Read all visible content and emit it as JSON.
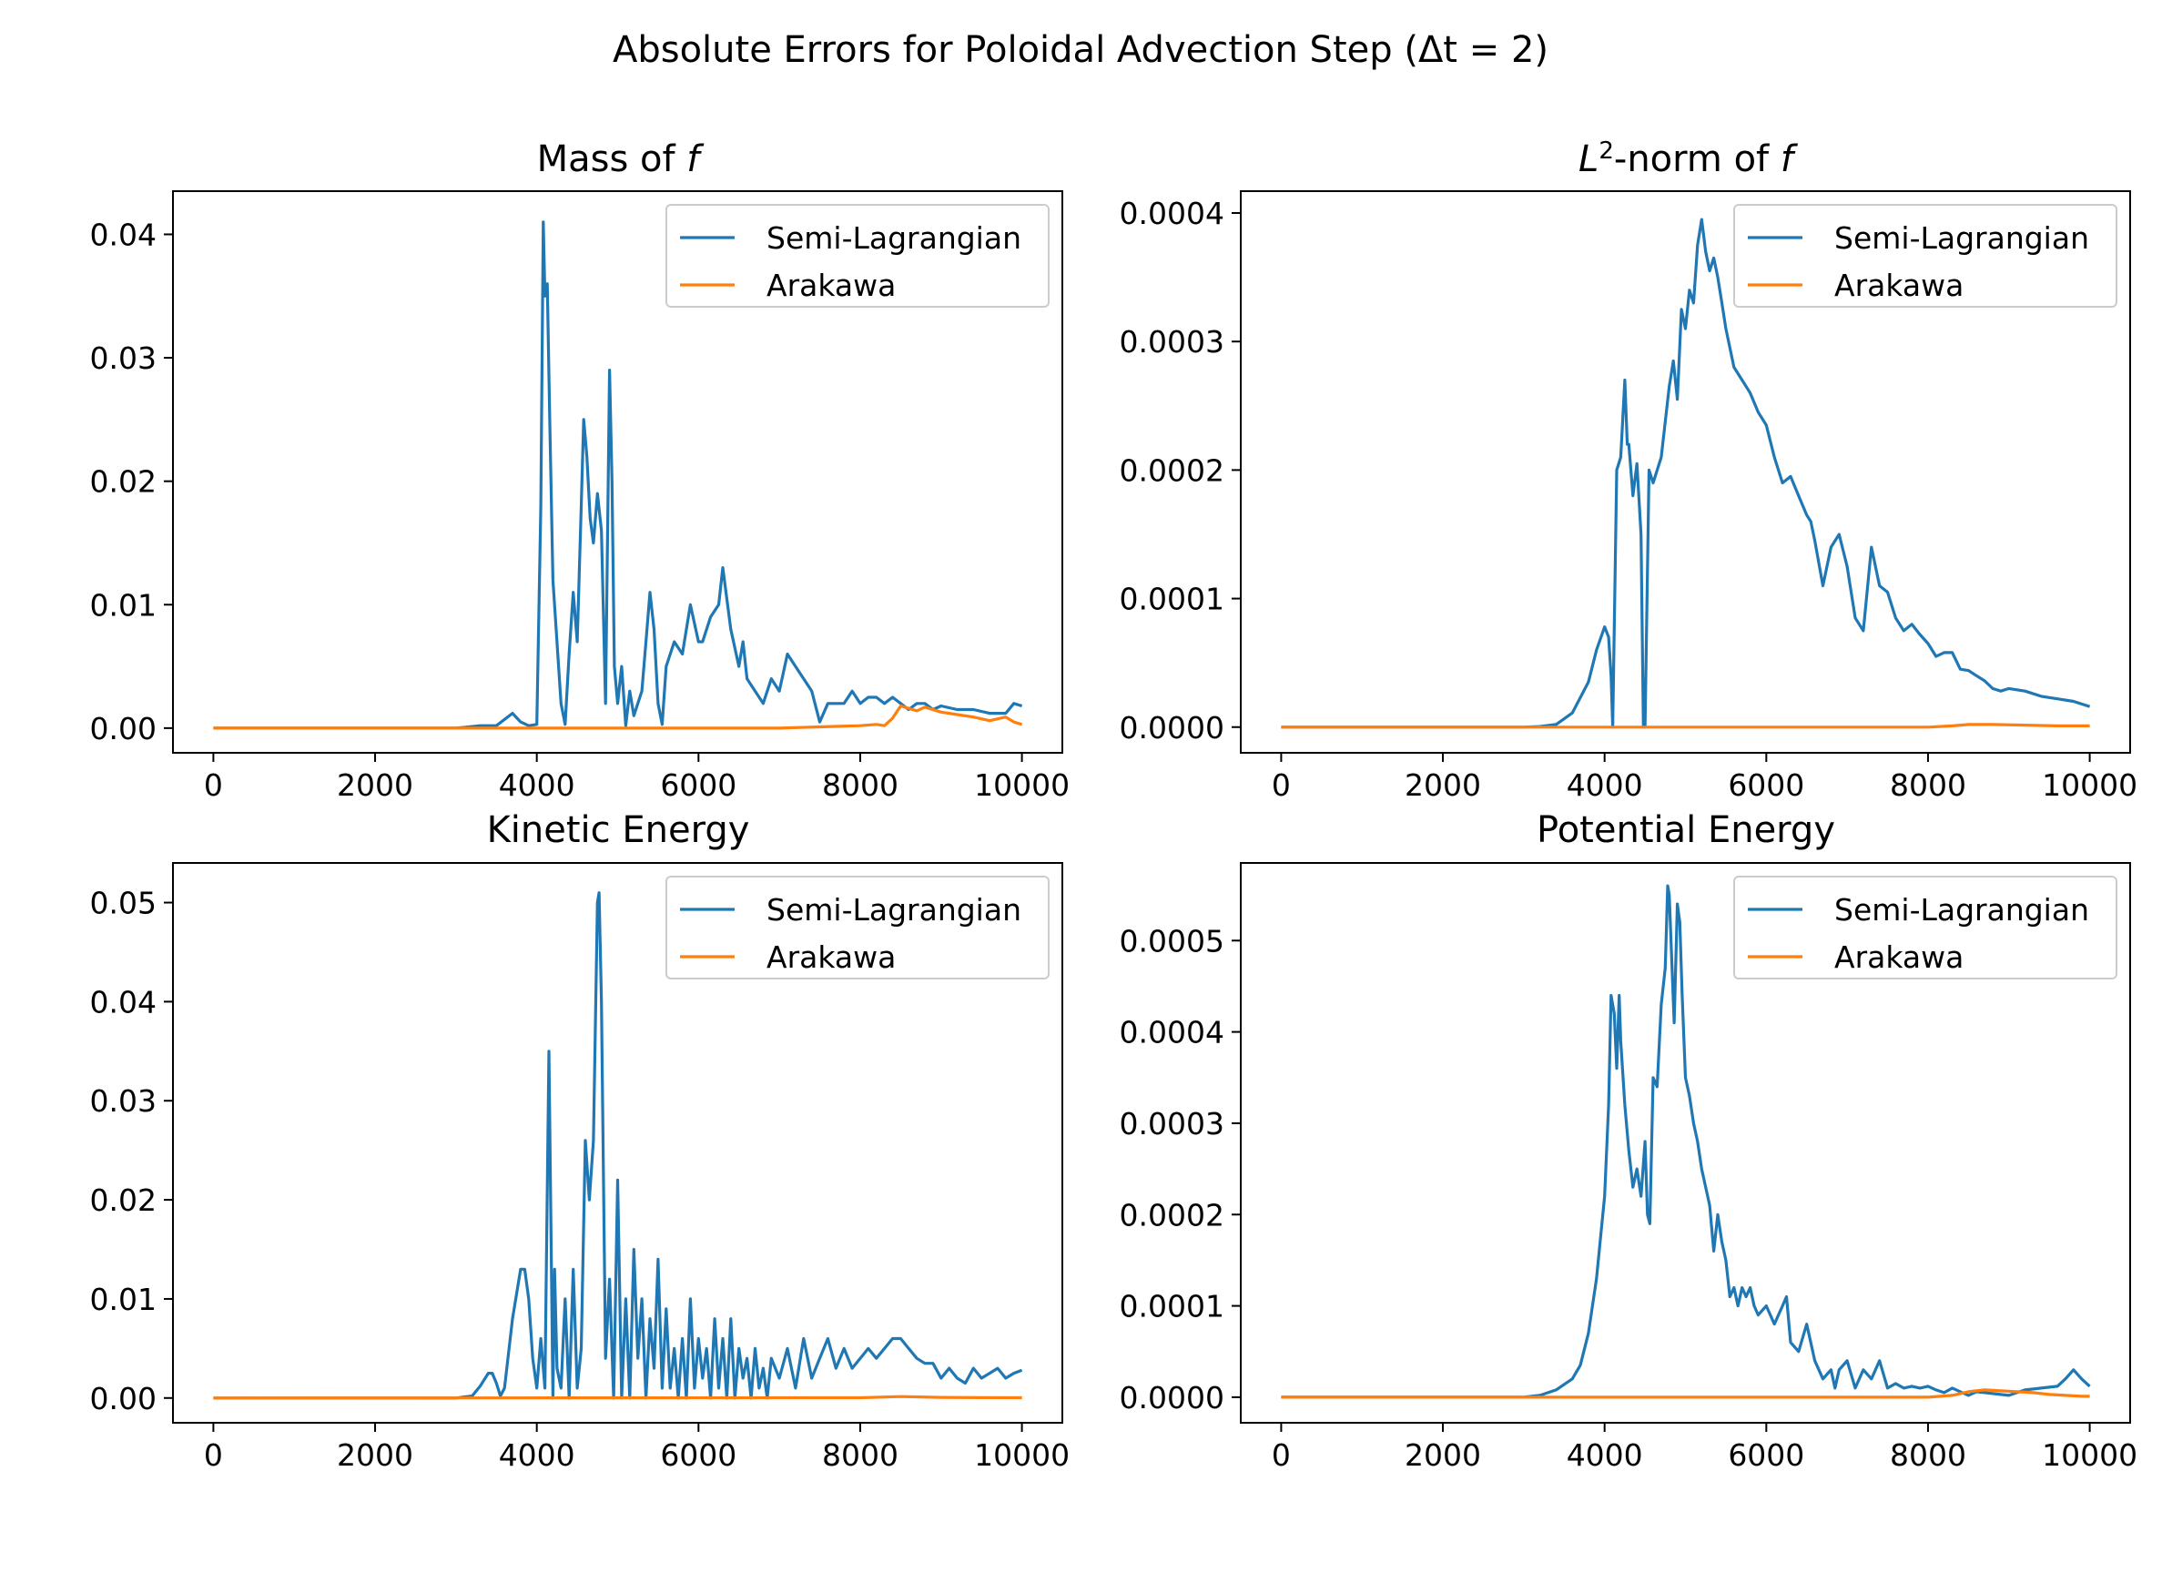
{
  "figure": {
    "suptitle": "Absolute Errors for Poloidal Advection Step (Δt = 2)"
  },
  "colors": {
    "semi_lagrangian": "#1f77b4",
    "arakawa": "#ff7f0e",
    "axes": "#000000",
    "legend_border": "#cccccc"
  },
  "chart_data": [
    {
      "type": "line",
      "title": "Mass of f",
      "legend": "top-right",
      "grid": false,
      "xlim": [
        -500,
        10500
      ],
      "ylim": [
        -0.002,
        0.0435
      ],
      "xticks": [
        0,
        2000,
        4000,
        6000,
        8000,
        10000
      ],
      "xtick_labels": [
        "0",
        "2000",
        "4000",
        "6000",
        "8000",
        "10000"
      ],
      "yticks": [
        0,
        0.01,
        0.02,
        0.03,
        0.04
      ],
      "ytick_labels": [
        "0.00",
        "0.01",
        "0.02",
        "0.03",
        "0.04"
      ],
      "series": [
        {
          "name": "Semi-Lagrangian",
          "color": "#1f77b4",
          "x": [
            0,
            3000,
            3300,
            3500,
            3700,
            3800,
            3900,
            4000,
            4050,
            4080,
            4100,
            4130,
            4160,
            4200,
            4300,
            4350,
            4400,
            4450,
            4500,
            4550,
            4580,
            4620,
            4660,
            4700,
            4750,
            4800,
            4850,
            4900,
            4930,
            4960,
            5000,
            5050,
            5100,
            5150,
            5200,
            5300,
            5350,
            5400,
            5450,
            5500,
            5550,
            5600,
            5700,
            5800,
            5900,
            6000,
            6050,
            6100,
            6150,
            6250,
            6300,
            6400,
            6500,
            6550,
            6600,
            6700,
            6800,
            6900,
            7000,
            7100,
            7200,
            7300,
            7400,
            7500,
            7600,
            7700,
            7800,
            7900,
            8000,
            8100,
            8200,
            8300,
            8400,
            8500,
            8600,
            8700,
            8800,
            8900,
            9000,
            9200,
            9400,
            9600,
            9800,
            9900,
            10000
          ],
          "y": [
            0.0,
            0.0,
            0.0002,
            0.0002,
            0.0012,
            0.0005,
            0.0002,
            0.0003,
            0.018,
            0.041,
            0.035,
            0.036,
            0.025,
            0.012,
            0.002,
            0.0003,
            0.006,
            0.011,
            0.007,
            0.018,
            0.025,
            0.022,
            0.017,
            0.015,
            0.019,
            0.016,
            0.002,
            0.029,
            0.02,
            0.005,
            0.002,
            0.005,
            0.0002,
            0.003,
            0.001,
            0.003,
            0.007,
            0.011,
            0.008,
            0.002,
            0.0003,
            0.005,
            0.007,
            0.006,
            0.01,
            0.007,
            0.007,
            0.008,
            0.009,
            0.01,
            0.013,
            0.008,
            0.005,
            0.007,
            0.004,
            0.003,
            0.002,
            0.004,
            0.003,
            0.006,
            0.005,
            0.004,
            0.003,
            0.0005,
            0.002,
            0.002,
            0.002,
            0.003,
            0.002,
            0.0025,
            0.0025,
            0.002,
            0.0025,
            0.002,
            0.0015,
            0.002,
            0.002,
            0.0015,
            0.0018,
            0.0015,
            0.0015,
            0.0012,
            0.0012,
            0.002,
            0.0018
          ]
        },
        {
          "name": "Arakawa",
          "color": "#ff7f0e",
          "x": [
            0,
            7000,
            7500,
            8000,
            8200,
            8300,
            8400,
            8500,
            8600,
            8700,
            8800,
            9000,
            9200,
            9400,
            9600,
            9800,
            9900,
            10000
          ],
          "y": [
            0.0,
            0.0,
            0.0001,
            0.0002,
            0.0003,
            0.0002,
            0.0008,
            0.0018,
            0.0016,
            0.0014,
            0.0017,
            0.0013,
            0.0011,
            0.0009,
            0.0006,
            0.0009,
            0.0005,
            0.0003
          ]
        }
      ]
    },
    {
      "type": "line",
      "title": "L²-norm of f",
      "legend": "top-right",
      "grid": false,
      "xlim": [
        -500,
        10500
      ],
      "ylim": [
        -2e-05,
        0.000417
      ],
      "xticks": [
        0,
        2000,
        4000,
        6000,
        8000,
        10000
      ],
      "xtick_labels": [
        "0",
        "2000",
        "4000",
        "6000",
        "8000",
        "10000"
      ],
      "yticks": [
        0,
        0.0001,
        0.0002,
        0.0003,
        0.0004
      ],
      "ytick_labels": [
        "0.0000",
        "0.0001",
        "0.0002",
        "0.0003",
        "0.0004"
      ],
      "series": [
        {
          "name": "Semi-Lagrangian",
          "color": "#1f77b4",
          "x": [
            0,
            3000,
            3200,
            3400,
            3600,
            3800,
            3900,
            4000,
            4050,
            4080,
            4100,
            4150,
            4200,
            4250,
            4280,
            4300,
            4350,
            4400,
            4450,
            4480,
            4500,
            4550,
            4600,
            4700,
            4800,
            4850,
            4900,
            4950,
            5000,
            5050,
            5100,
            5150,
            5200,
            5250,
            5300,
            5350,
            5400,
            5450,
            5500,
            5600,
            5700,
            5800,
            5900,
            6000,
            6100,
            6200,
            6300,
            6400,
            6500,
            6550,
            6600,
            6700,
            6800,
            6900,
            7000,
            7100,
            7200,
            7300,
            7400,
            7500,
            7600,
            7700,
            7800,
            7900,
            8000,
            8100,
            8200,
            8300,
            8400,
            8500,
            8600,
            8700,
            8800,
            8900,
            9000,
            9200,
            9400,
            9600,
            9800,
            10000
          ],
          "y": [
            0.0,
            0.0,
            5e-07,
            2e-06,
            1.1e-05,
            3.5e-05,
            6e-05,
            7.8e-05,
            7e-05,
            4e-05,
            0.0,
            0.0002,
            0.00021,
            0.00027,
            0.00022,
            0.00022,
            0.00018,
            0.000205,
            0.00015,
            0.0,
            0.0,
            0.0002,
            0.00019,
            0.00021,
            0.000265,
            0.000285,
            0.000255,
            0.000325,
            0.00031,
            0.00034,
            0.00033,
            0.000375,
            0.000395,
            0.00037,
            0.000355,
            0.000365,
            0.00035,
            0.00033,
            0.00031,
            0.00028,
            0.00027,
            0.00026,
            0.000245,
            0.000235,
            0.00021,
            0.00019,
            0.000195,
            0.00018,
            0.000165,
            0.00016,
            0.000145,
            0.00011,
            0.00014,
            0.00015,
            0.000125,
            8.5e-05,
            7.5e-05,
            0.00014,
            0.00011,
            0.000105,
            8.5e-05,
            7.5e-05,
            8e-05,
            7.2e-05,
            6.5e-05,
            5.5e-05,
            5.8e-05,
            5.8e-05,
            4.5e-05,
            4.4e-05,
            4e-05,
            3.6e-05,
            3e-05,
            2.8e-05,
            3e-05,
            2.8e-05,
            2.4e-05,
            2.2e-05,
            2e-05,
            1.6e-05
          ]
        },
        {
          "name": "Arakawa",
          "color": "#ff7f0e",
          "x": [
            0,
            8000,
            8300,
            8500,
            8800,
            9200,
            9600,
            10000
          ],
          "y": [
            0.0,
            0.0,
            1e-06,
            2e-06,
            2e-06,
            1.5e-06,
            1e-06,
            1e-06
          ]
        }
      ]
    },
    {
      "type": "line",
      "title": "Kinetic Energy",
      "legend": "top-right",
      "grid": false,
      "xlim": [
        -500,
        10500
      ],
      "ylim": [
        -0.0025,
        0.054
      ],
      "xticks": [
        0,
        2000,
        4000,
        6000,
        8000,
        10000
      ],
      "xtick_labels": [
        "0",
        "2000",
        "4000",
        "6000",
        "8000",
        "10000"
      ],
      "yticks": [
        0,
        0.01,
        0.02,
        0.03,
        0.04,
        0.05
      ],
      "ytick_labels": [
        "0.00",
        "0.01",
        "0.02",
        "0.03",
        "0.04",
        "0.05"
      ],
      "series": [
        {
          "name": "Semi-Lagrangian",
          "color": "#1f77b4",
          "x": [
            0,
            3000,
            3200,
            3300,
            3400,
            3450,
            3500,
            3550,
            3600,
            3700,
            3800,
            3850,
            3900,
            3950,
            4000,
            4050,
            4100,
            4150,
            4200,
            4220,
            4250,
            4300,
            4350,
            4400,
            4450,
            4500,
            4550,
            4600,
            4650,
            4700,
            4750,
            4770,
            4800,
            4850,
            4900,
            4950,
            5000,
            5050,
            5100,
            5150,
            5200,
            5250,
            5300,
            5350,
            5400,
            5450,
            5500,
            5550,
            5600,
            5650,
            5700,
            5750,
            5800,
            5850,
            5900,
            5950,
            6000,
            6050,
            6100,
            6150,
            6200,
            6250,
            6300,
            6350,
            6400,
            6450,
            6500,
            6550,
            6600,
            6650,
            6700,
            6750,
            6800,
            6850,
            6900,
            7000,
            7100,
            7200,
            7300,
            7400,
            7500,
            7600,
            7700,
            7800,
            7900,
            8000,
            8100,
            8200,
            8300,
            8400,
            8500,
            8600,
            8700,
            8800,
            8900,
            9000,
            9100,
            9200,
            9300,
            9400,
            9500,
            9600,
            9700,
            9800,
            9900,
            10000
          ],
          "y": [
            0.0,
            0.0,
            0.0002,
            0.0012,
            0.0025,
            0.0025,
            0.0015,
            0.0002,
            0.001,
            0.008,
            0.013,
            0.013,
            0.01,
            0.004,
            0.001,
            0.006,
            0.001,
            0.035,
            0.0,
            0.013,
            0.003,
            0.001,
            0.01,
            0.0,
            0.013,
            0.001,
            0.005,
            0.026,
            0.02,
            0.026,
            0.05,
            0.051,
            0.04,
            0.004,
            0.012,
            0.0,
            0.022,
            0.0,
            0.01,
            0.0,
            0.015,
            0.004,
            0.01,
            0.0,
            0.008,
            0.003,
            0.014,
            0.001,
            0.009,
            0.001,
            0.005,
            0.0,
            0.006,
            0.0,
            0.01,
            0.001,
            0.006,
            0.002,
            0.005,
            0.0,
            0.008,
            0.001,
            0.006,
            0.0,
            0.008,
            0.0,
            0.005,
            0.002,
            0.004,
            0.0,
            0.005,
            0.001,
            0.003,
            0.0,
            0.004,
            0.002,
            0.005,
            0.001,
            0.006,
            0.002,
            0.004,
            0.006,
            0.003,
            0.005,
            0.003,
            0.004,
            0.005,
            0.004,
            0.005,
            0.006,
            0.006,
            0.005,
            0.004,
            0.0035,
            0.0035,
            0.002,
            0.003,
            0.002,
            0.0015,
            0.003,
            0.002,
            0.0025,
            0.003,
            0.002,
            0.0025,
            0.0028
          ]
        },
        {
          "name": "Arakawa",
          "color": "#ff7f0e",
          "x": [
            0,
            8000,
            8500,
            9000,
            9500,
            10000
          ],
          "y": [
            0.0,
            3e-05,
            0.00015,
            6e-05,
            4e-05,
            3e-05
          ]
        }
      ]
    },
    {
      "type": "line",
      "title": "Potential Energy",
      "legend": "top-right",
      "grid": false,
      "xlim": [
        -500,
        10500
      ],
      "ylim": [
        -2.8e-05,
        0.000585
      ],
      "xticks": [
        0,
        2000,
        4000,
        6000,
        8000,
        10000
      ],
      "xtick_labels": [
        "0",
        "2000",
        "4000",
        "6000",
        "8000",
        "10000"
      ],
      "yticks": [
        0,
        0.0001,
        0.0002,
        0.0003,
        0.0004,
        0.0005
      ],
      "ytick_labels": [
        "0.0000",
        "0.0001",
        "0.0002",
        "0.0003",
        "0.0004",
        "0.0005"
      ],
      "series": [
        {
          "name": "Semi-Lagrangian",
          "color": "#1f77b4",
          "x": [
            0,
            3000,
            3200,
            3400,
            3600,
            3700,
            3800,
            3900,
            4000,
            4050,
            4080,
            4120,
            4150,
            4180,
            4200,
            4250,
            4300,
            4350,
            4400,
            4450,
            4500,
            4530,
            4560,
            4600,
            4650,
            4700,
            4750,
            4780,
            4800,
            4830,
            4860,
            4900,
            4930,
            4960,
            5000,
            5050,
            5100,
            5150,
            5200,
            5250,
            5300,
            5350,
            5400,
            5450,
            5500,
            5550,
            5600,
            5650,
            5700,
            5750,
            5800,
            5850,
            5900,
            6000,
            6100,
            6200,
            6250,
            6300,
            6400,
            6500,
            6600,
            6700,
            6800,
            6850,
            6900,
            7000,
            7100,
            7200,
            7300,
            7400,
            7500,
            7600,
            7700,
            7800,
            7900,
            8000,
            8100,
            8200,
            8300,
            8400,
            8500,
            8600,
            8800,
            9000,
            9200,
            9400,
            9600,
            9700,
            9800,
            9900,
            10000
          ],
          "y": [
            0.0,
            0.0,
            2e-06,
            8e-06,
            2e-05,
            3.5e-05,
            7e-05,
            0.00013,
            0.00022,
            0.00032,
            0.00044,
            0.00042,
            0.00036,
            0.00044,
            0.00039,
            0.00032,
            0.00027,
            0.00023,
            0.00025,
            0.00022,
            0.00028,
            0.0002,
            0.00019,
            0.00035,
            0.00034,
            0.00043,
            0.00047,
            0.00056,
            0.00055,
            0.00048,
            0.00041,
            0.00054,
            0.00052,
            0.00044,
            0.00035,
            0.00033,
            0.0003,
            0.00028,
            0.00025,
            0.00023,
            0.00021,
            0.00016,
            0.0002,
            0.00017,
            0.00015,
            0.00011,
            0.00012,
            0.0001,
            0.00012,
            0.00011,
            0.00012,
            0.0001,
            9e-05,
            0.0001,
            8e-05,
            0.0001,
            0.00011,
            6e-05,
            5e-05,
            8e-05,
            4e-05,
            2e-05,
            3e-05,
            1e-05,
            3e-05,
            4e-05,
            1e-05,
            3e-05,
            2e-05,
            4e-05,
            1e-05,
            1.5e-05,
            1e-05,
            1.2e-05,
            1e-05,
            1.2e-05,
            8e-06,
            5e-06,
            1e-05,
            6e-06,
            2e-06,
            6e-06,
            4e-06,
            2e-06,
            8e-06,
            1e-05,
            1.2e-05,
            2e-05,
            3e-05,
            2e-05,
            1.2e-05
          ]
        },
        {
          "name": "Arakawa",
          "color": "#ff7f0e",
          "x": [
            0,
            8000,
            8300,
            8500,
            8700,
            8900,
            9100,
            9300,
            9500,
            9700,
            9900,
            10000
          ],
          "y": [
            0.0,
            0.0,
            2e-06,
            6e-06,
            8e-06,
            7e-06,
            6e-06,
            5e-06,
            3e-06,
            2e-06,
            1e-06,
            1e-06
          ]
        }
      ]
    }
  ]
}
